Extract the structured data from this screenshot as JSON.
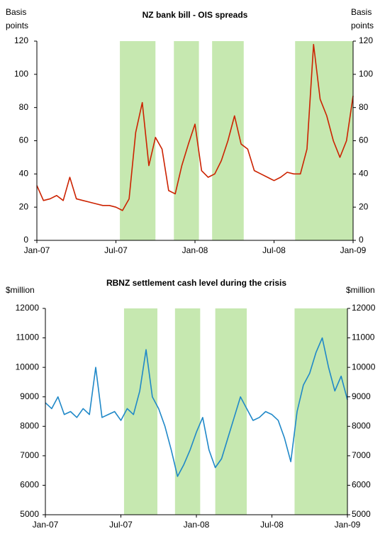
{
  "chart_data": [
    {
      "type": "line",
      "title": "NZ bank bill - OIS spreads",
      "y_label_lines": [
        "Basis",
        "points"
      ],
      "x": [
        0,
        0.5,
        1,
        1.5,
        2,
        2.5,
        3,
        3.5,
        4,
        4.5,
        5,
        5.5,
        6,
        6.5,
        7,
        7.5,
        8,
        8.5,
        9,
        9.5,
        10,
        10.5,
        11,
        11.5,
        12,
        12.5,
        13,
        13.5,
        14,
        14.5,
        15,
        15.5,
        16,
        16.5,
        17,
        17.5,
        18,
        18.5,
        19,
        19.5,
        20,
        20.5,
        21,
        21.5,
        22,
        22.5,
        23,
        23.5,
        24
      ],
      "series": [
        {
          "color": "#cc2200",
          "values": [
            33,
            24,
            25,
            27,
            24,
            38,
            25,
            24,
            23,
            22,
            21,
            21,
            20,
            18,
            25,
            65,
            83,
            45,
            62,
            55,
            30,
            28,
            45,
            58,
            70,
            42,
            38,
            40,
            48,
            60,
            75,
            58,
            55,
            42,
            40,
            38,
            36,
            38,
            41,
            40,
            40,
            55,
            118,
            85,
            75,
            60,
            50,
            60,
            87
          ]
        }
      ],
      "shaded_periods": [
        [
          6.3,
          9.0
        ],
        [
          10.4,
          12.3
        ],
        [
          13.3,
          15.7
        ],
        [
          19.6,
          24
        ]
      ],
      "shade_color": "#c6e8b0",
      "xlim": [
        0,
        24
      ],
      "xticks": [
        {
          "value": 0,
          "label": "Jan-07"
        },
        {
          "value": 6,
          "label": "Jul-07"
        },
        {
          "value": 12,
          "label": "Jan-08"
        },
        {
          "value": 18,
          "label": "Jul-08"
        },
        {
          "value": 24,
          "label": "Jan-09"
        }
      ],
      "ylim": [
        0,
        120
      ],
      "yticks": [
        0,
        20,
        40,
        60,
        80,
        100,
        120
      ]
    },
    {
      "type": "line",
      "title": "RBNZ settlement cash level during the crisis",
      "y_label_lines": [
        "$million"
      ],
      "x": [
        0,
        0.5,
        1,
        1.5,
        2,
        2.5,
        3,
        3.5,
        4,
        4.5,
        5,
        5.5,
        6,
        6.5,
        7,
        7.5,
        8,
        8.5,
        9,
        9.5,
        10,
        10.5,
        11,
        11.5,
        12,
        12.5,
        13,
        13.5,
        14,
        14.5,
        15,
        15.5,
        16,
        16.5,
        17,
        17.5,
        18,
        18.5,
        19,
        19.5,
        20,
        20.5,
        21,
        21.5,
        22,
        22.5,
        23,
        23.5,
        24
      ],
      "series": [
        {
          "color": "#1f88c8",
          "values": [
            8800,
            8600,
            9000,
            8400,
            8500,
            8300,
            8600,
            8400,
            10000,
            8300,
            8400,
            8500,
            8200,
            8600,
            8400,
            9200,
            10600,
            9000,
            8600,
            8000,
            7200,
            6300,
            6700,
            7200,
            7800,
            8300,
            7200,
            6600,
            6900,
            7600,
            8300,
            9000,
            8600,
            8200,
            8300,
            8500,
            8400,
            8200,
            7600,
            6800,
            8500,
            9400,
            9800,
            10500,
            11000,
            10000,
            9200,
            9700,
            8900
          ]
        }
      ],
      "shaded_periods": [
        [
          6.25,
          8.9
        ],
        [
          10.3,
          12.3
        ],
        [
          13.5,
          16.0
        ],
        [
          19.8,
          24
        ]
      ],
      "shade_color": "#c6e8b0",
      "xlim": [
        0,
        24
      ],
      "xticks": [
        {
          "value": 0,
          "label": "Jan-07"
        },
        {
          "value": 6,
          "label": "Jul-07"
        },
        {
          "value": 12,
          "label": "Jan-08"
        },
        {
          "value": 18,
          "label": "Jul-08"
        },
        {
          "value": 24,
          "label": "Jan-09"
        }
      ],
      "ylim": [
        5000,
        12000
      ],
      "yticks": [
        5000,
        6000,
        7000,
        8000,
        9000,
        10000,
        11000,
        12000
      ]
    }
  ]
}
